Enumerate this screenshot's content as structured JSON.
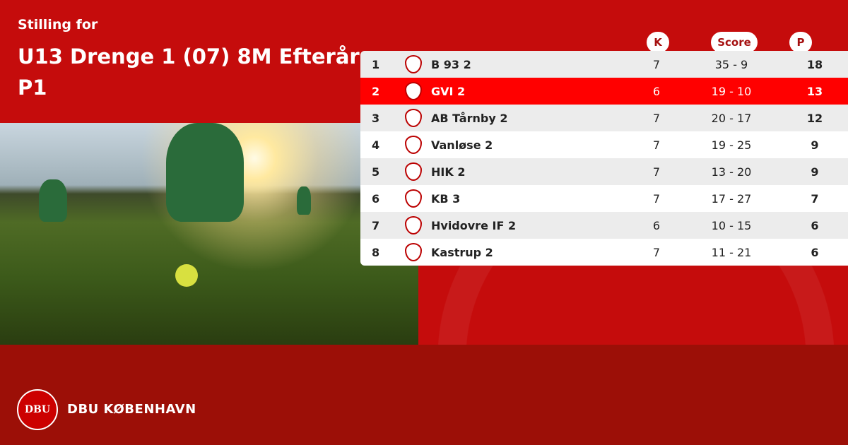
{
  "header": {
    "subtitle": "Stilling for",
    "title": "U13 Drenge 1 (07) 8M Efterår P1"
  },
  "columns": {
    "played": "K",
    "score": "Score",
    "points": "P"
  },
  "colors": {
    "primary": "#c50c0c",
    "highlight": "#ff0000",
    "footer": "#9c0f07"
  },
  "rows": [
    {
      "pos": "1",
      "team": "B 93 2",
      "played": "7",
      "score": "35 - 9",
      "points": "18"
    },
    {
      "pos": "2",
      "team": "GVI 2",
      "played": "6",
      "score": "19 - 10",
      "points": "13",
      "highlighted": true
    },
    {
      "pos": "3",
      "team": "AB Tårnby 2",
      "played": "7",
      "score": "20 - 17",
      "points": "12"
    },
    {
      "pos": "4",
      "team": "Vanløse 2",
      "played": "7",
      "score": "19 - 25",
      "points": "9"
    },
    {
      "pos": "5",
      "team": "HIK 2",
      "played": "7",
      "score": "13 - 20",
      "points": "9"
    },
    {
      "pos": "6",
      "team": "KB 3",
      "played": "7",
      "score": "17 - 27",
      "points": "7"
    },
    {
      "pos": "7",
      "team": "Hvidovre IF 2",
      "played": "6",
      "score": "10 - 15",
      "points": "6"
    },
    {
      "pos": "8",
      "team": "Kastrup 2",
      "played": "7",
      "score": "11 - 21",
      "points": "6"
    }
  ],
  "footer": {
    "brand": "DBU KØBENHAVN",
    "logo_text": "DBU"
  }
}
